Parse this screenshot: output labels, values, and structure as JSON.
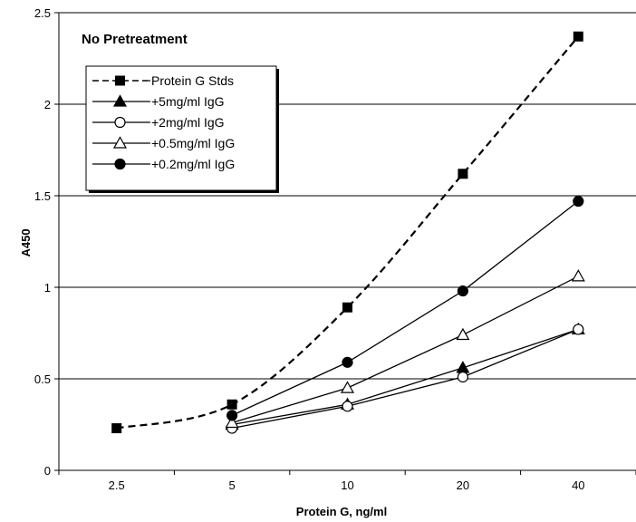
{
  "chart_data": {
    "type": "line",
    "annotation": "No Pretreatment",
    "xlabel": "Protein G, ng/ml",
    "ylabel": "A450",
    "categories": [
      "2.5",
      "5",
      "10",
      "20",
      "40"
    ],
    "ylim": [
      0,
      2.5
    ],
    "yticks": [
      "0",
      "0.5",
      "1",
      "1.5",
      "2",
      "2.5"
    ],
    "grid": "horizontal",
    "legend_position": "top-left",
    "series": [
      {
        "name": "Protein G Stds",
        "marker": "square-filled",
        "line": "dashed",
        "values": [
          0.23,
          0.36,
          0.89,
          1.62,
          2.37
        ]
      },
      {
        "name": "+5mg/ml IgG",
        "marker": "triangle-filled",
        "line": "solid",
        "values": [
          null,
          0.25,
          0.36,
          0.56,
          0.77
        ]
      },
      {
        "name": "+2mg/ml IgG",
        "marker": "circle-open",
        "line": "solid",
        "values": [
          null,
          0.23,
          0.35,
          0.51,
          0.77
        ]
      },
      {
        "name": "+0.5mg/ml IgG",
        "marker": "triangle-open",
        "line": "solid",
        "values": [
          null,
          0.26,
          0.45,
          0.74,
          1.06
        ]
      },
      {
        "name": "+0.2mg/ml IgG",
        "marker": "circle-filled",
        "line": "solid",
        "values": [
          null,
          0.3,
          0.59,
          0.98,
          1.47
        ]
      }
    ]
  }
}
